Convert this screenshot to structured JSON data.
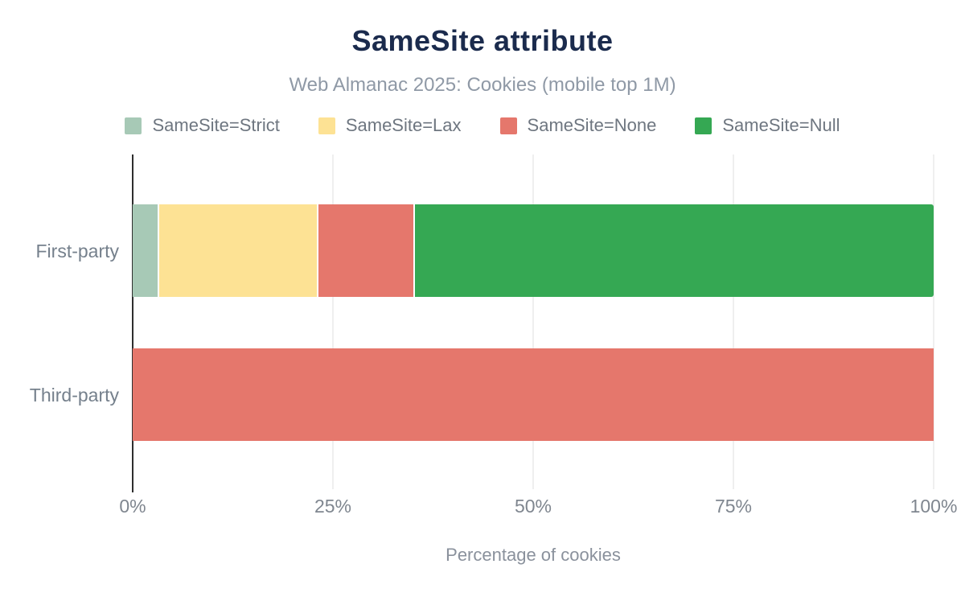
{
  "title": "SameSite attribute",
  "subtitle": "Web Almanac 2025: Cookies (mobile top 1M)",
  "legend": [
    {
      "label": "SameSite=Strict",
      "color": "#a7c9b6"
    },
    {
      "label": "SameSite=Lax",
      "color": "#fde294"
    },
    {
      "label": "SameSite=None",
      "color": "#e5776c"
    },
    {
      "label": "SameSite=Null",
      "color": "#35a853"
    }
  ],
  "chart_data": {
    "type": "bar",
    "orientation": "horizontal",
    "stacked": true,
    "title": "SameSite attribute",
    "subtitle": "Web Almanac 2025: Cookies (mobile top 1M)",
    "categories": [
      "First-party",
      "Third-party"
    ],
    "series": [
      {
        "name": "SameSite=Strict",
        "color": "#a7c9b6",
        "values": [
          3.3,
          0
        ]
      },
      {
        "name": "SameSite=Lax",
        "color": "#fde294",
        "values": [
          19.9,
          0
        ]
      },
      {
        "name": "SameSite=None",
        "color": "#e5776c",
        "values": [
          12.0,
          100
        ]
      },
      {
        "name": "SameSite=Null",
        "color": "#35a853",
        "values": [
          64.8,
          0
        ]
      }
    ],
    "xlabel": "Percentage of cookies",
    "ylabel": "",
    "xlim": [
      0,
      100
    ],
    "x_ticks": [
      {
        "label": "0%",
        "value": 0
      },
      {
        "label": "25%",
        "value": 25
      },
      {
        "label": "50%",
        "value": 50
      },
      {
        "label": "75%",
        "value": 75
      },
      {
        "label": "100%",
        "value": 100
      }
    ],
    "grid": "vertical",
    "legend_position": "top"
  },
  "colors": {
    "background": "#ffffff",
    "title_text": "#1b2b4d",
    "subtitle_text": "#8f99a6",
    "legend_text": "#6e7680",
    "category_text": "#75808c",
    "tick_text": "#7f868f",
    "axis_line": "#2e2e2e",
    "gridline": "#efefef"
  }
}
